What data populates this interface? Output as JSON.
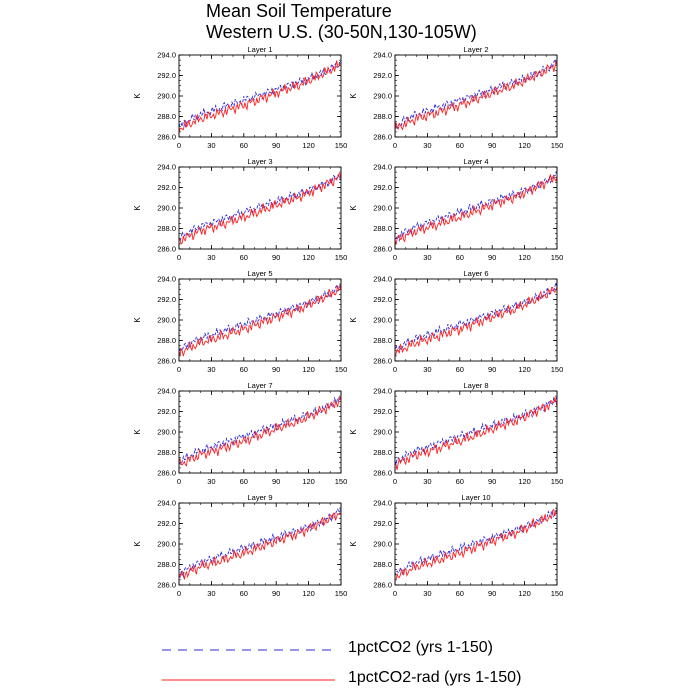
{
  "title": {
    "line1": "Mean Soil Temperature",
    "line2": "Western U.S. (30-50N,130-105W)"
  },
  "legend": [
    {
      "label": "1pctCO2 (yrs 1-150)",
      "color": "#2b2bd6",
      "style": "dashed"
    },
    {
      "label": "1pctCO2-rad (yrs 1-150)",
      "color": "#ff2020",
      "style": "solid"
    }
  ],
  "chart_data": {
    "type": "line",
    "layout": "5x2 panel grid",
    "ylabel": "K",
    "xlim": [
      0,
      150
    ],
    "ylim": [
      286.0,
      294.0
    ],
    "xticks": [
      0,
      30,
      60,
      90,
      120,
      150
    ],
    "yticks": [
      "286.0",
      "288.0",
      "290.0",
      "292.0",
      "294.0"
    ],
    "panels": [
      {
        "title": "Layer 1"
      },
      {
        "title": "Layer 2"
      },
      {
        "title": "Layer 3"
      },
      {
        "title": "Layer 4"
      },
      {
        "title": "Layer 5"
      },
      {
        "title": "Layer 6"
      },
      {
        "title": "Layer 7"
      },
      {
        "title": "Layer 8"
      },
      {
        "title": "Layer 9"
      },
      {
        "title": "Layer 10"
      }
    ],
    "series": [
      {
        "name": "1pctCO2 (yrs 1-150)",
        "color": "#2b2bd6",
        "x": [
          0,
          10,
          20,
          30,
          40,
          50,
          60,
          70,
          80,
          90,
          100,
          110,
          120,
          130,
          140,
          150
        ],
        "values": [
          287.0,
          287.7,
          288.2,
          288.5,
          288.9,
          289.2,
          289.6,
          289.9,
          290.3,
          290.6,
          291.0,
          291.3,
          291.7,
          292.1,
          292.6,
          293.3
        ]
      },
      {
        "name": "1pctCO2-rad (yrs 1-150)",
        "color": "#ff2020",
        "x": [
          0,
          10,
          20,
          30,
          40,
          50,
          60,
          70,
          80,
          90,
          100,
          110,
          120,
          130,
          140,
          150
        ],
        "values": [
          286.8,
          287.3,
          287.8,
          288.1,
          288.4,
          288.8,
          289.1,
          289.5,
          289.9,
          290.3,
          290.7,
          291.0,
          291.5,
          292.0,
          292.5,
          293.1
        ]
      }
    ]
  }
}
